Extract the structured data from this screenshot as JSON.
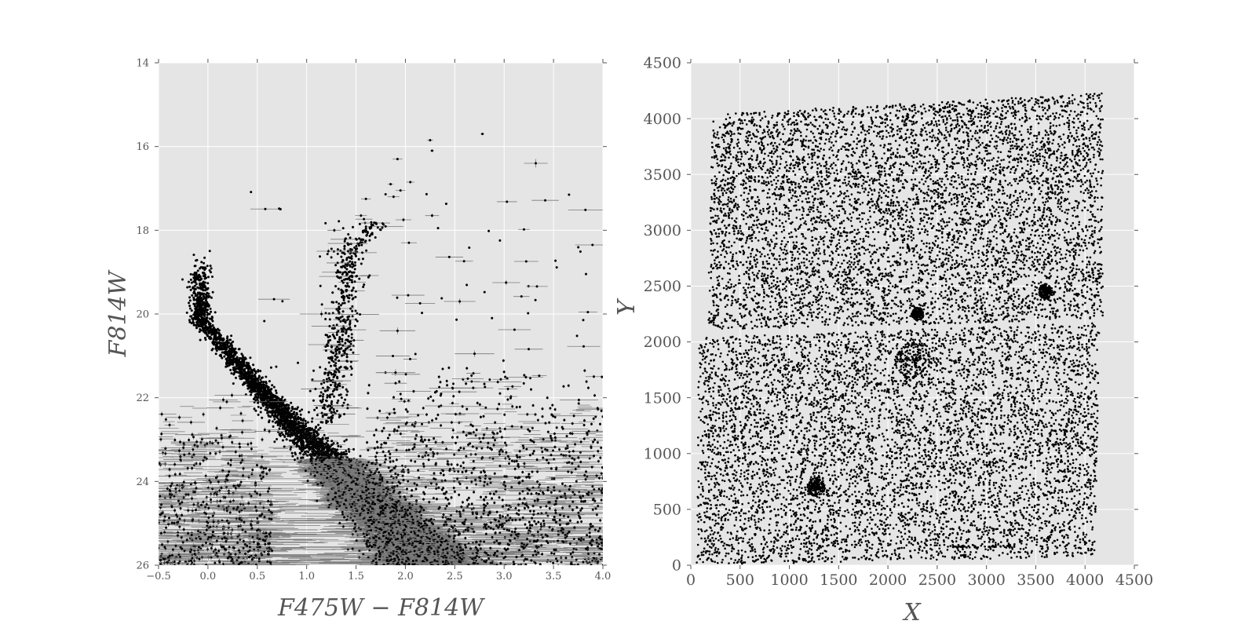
{
  "figure": {
    "background": "#ffffff",
    "panel_background": "#e5e5e5",
    "grid_color": "#ffffff",
    "point_color": "#000000",
    "errorbar_color": "#7a7a7a"
  },
  "chart_data": [
    {
      "type": "scatter",
      "title": "",
      "xlabel": "F475W − F814W",
      "ylabel": "F814W",
      "xlim": [
        -0.5,
        4.0
      ],
      "ylim": [
        26,
        14
      ],
      "y_inverted": true,
      "grid": true,
      "xticks": [
        "−0.5",
        "0.0",
        "0.5",
        "1.0",
        "1.5",
        "2.0",
        "2.5",
        "3.0",
        "3.5",
        "4.0"
      ],
      "yticks": [
        "14",
        "16",
        "18",
        "20",
        "22",
        "24",
        "26"
      ],
      "notes_on_content": "color-magnitude diagram with error bars",
      "bright_stars_with_errors": [
        {
          "x": 2.78,
          "y": 15.7,
          "xerr": 0.02,
          "yerr": 0.03
        },
        {
          "x": 2.25,
          "y": 15.85,
          "xerr": 0.03,
          "yerr": 0.03
        },
        {
          "x": 2.27,
          "y": 16.1,
          "xerr": 0.02,
          "yerr": 0.03
        },
        {
          "x": 3.32,
          "y": 16.4,
          "xerr": 0.12,
          "yerr": 0.1
        },
        {
          "x": 1.92,
          "y": 16.3,
          "xerr": 0.05,
          "yerr": 0.03
        },
        {
          "x": 2.05,
          "y": 16.85,
          "xerr": 0.04,
          "yerr": 0.03
        },
        {
          "x": 1.85,
          "y": 16.9,
          "xerr": 0.03,
          "yerr": 0.03
        },
        {
          "x": 1.95,
          "y": 17.05,
          "xerr": 0.05,
          "yerr": 0.03
        },
        {
          "x": 1.88,
          "y": 17.2,
          "xerr": 0.06,
          "yerr": 0.04
        },
        {
          "x": 1.6,
          "y": 17.25,
          "xerr": 0.05,
          "yerr": 0.03
        },
        {
          "x": 2.27,
          "y": 17.65,
          "xerr": 0.07,
          "yerr": 0.05
        },
        {
          "x": 1.98,
          "y": 17.75,
          "xerr": 0.08,
          "yerr": 0.05
        },
        {
          "x": 1.55,
          "y": 17.65,
          "xerr": 0.06,
          "yerr": 0.04
        },
        {
          "x": 1.28,
          "y": 18.0,
          "xerr": 0.07,
          "yerr": 0.05
        },
        {
          "x": 1.22,
          "y": 18.5,
          "xerr": 0.12,
          "yerr": 0.06
        },
        {
          "x": 1.42,
          "y": 18.5,
          "xerr": 0.1,
          "yerr": 0.06
        },
        {
          "x": 3.02,
          "y": 19.25,
          "xerr": 0.14,
          "yerr": 0.06
        },
        {
          "x": 2.55,
          "y": 19.7,
          "xerr": 0.16,
          "yerr": 0.07
        },
        {
          "x": 1.15,
          "y": 20.0,
          "xerr": 0.22,
          "yerr": 0.08
        },
        {
          "x": 1.92,
          "y": 20.4,
          "xerr": 0.18,
          "yerr": 0.08
        },
        {
          "x": 2.7,
          "y": 20.95,
          "xerr": 0.2,
          "yerr": 0.08
        },
        {
          "x": 1.9,
          "y": 21.4,
          "xerr": 0.2,
          "yerr": 0.08
        }
      ]
    },
    {
      "type": "scatter",
      "title": "",
      "xlabel": "X",
      "ylabel": "Y",
      "xlim": [
        0,
        4500
      ],
      "ylim": [
        0,
        4500
      ],
      "grid": true,
      "xticks": [
        "0",
        "500",
        "1000",
        "1500",
        "2000",
        "2500",
        "3000",
        "3500",
        "4000",
        "4500"
      ],
      "yticks": [
        "0",
        "500",
        "1000",
        "1500",
        "2000",
        "2500",
        "3000",
        "3500",
        "4000",
        "4500"
      ],
      "notes_on_content": "spatial positions of detected stars across two detector chips separated by a gap",
      "chip_upper_corners": [
        [
          170,
          2110
        ],
        [
          4180,
          2200
        ],
        [
          4180,
          4230
        ],
        [
          220,
          4040
        ]
      ],
      "chip_lower_corners": [
        [
          60,
          0
        ],
        [
          4100,
          80
        ],
        [
          4150,
          2170
        ],
        [
          80,
          2040
        ]
      ],
      "clusters": [
        {
          "x": 1270,
          "y": 700,
          "r": 90
        },
        {
          "x": 2250,
          "y": 1850,
          "r": 180
        },
        {
          "x": 3600,
          "y": 2450,
          "r": 70
        },
        {
          "x": 2300,
          "y": 2250,
          "r": 60
        }
      ]
    }
  ]
}
